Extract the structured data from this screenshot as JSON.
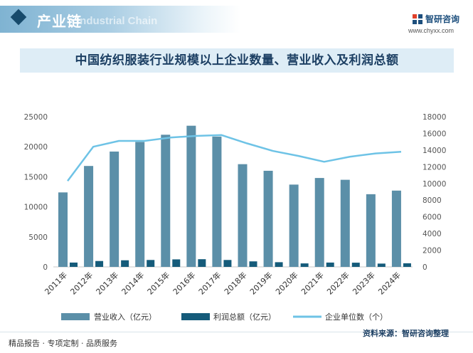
{
  "header": {
    "section_title": "产业链",
    "section_subtitle": "Industrial Chain",
    "brand_name": "智研咨询",
    "brand_url": "www.chyxx.com"
  },
  "chart_title": "中国纺织服装行业规模以上企业数量、营业收入及利润总额",
  "footer": {
    "left_text": "精品报告 · 专项定制 · 品质服务",
    "source_text": "资料来源：智研咨询整理"
  },
  "colors": {
    "revenue": "#5b8fa8",
    "profit": "#155b7a",
    "enterprises": "#6ec3e6",
    "axis_text": "#555555",
    "grid": "#e2e2e2"
  },
  "chart_data": {
    "type": "bar",
    "title": "中国纺织服装行业规模以上企业数量、营业收入及利润总额",
    "categories": [
      "2011年",
      "2012年",
      "2013年",
      "2014年",
      "2015年",
      "2016年",
      "2017年",
      "2018年",
      "2019年",
      "2020年",
      "2021年",
      "2022年",
      "2023年",
      "2024年"
    ],
    "series": [
      {
        "name": "营业收入（亿元）",
        "type": "bar",
        "axis": "left",
        "values": [
          12400,
          16800,
          19200,
          20800,
          22000,
          23500,
          21700,
          17100,
          16000,
          13700,
          14800,
          14500,
          12100,
          12700
        ]
      },
      {
        "name": "利润总额（亿元）",
        "type": "bar",
        "axis": "left",
        "values": [
          720,
          980,
          1100,
          1150,
          1250,
          1280,
          1150,
          920,
          780,
          580,
          720,
          700,
          550,
          600
        ]
      },
      {
        "name": "企业单位数（个）",
        "type": "line",
        "axis": "right",
        "values": [
          10300,
          14400,
          15100,
          15100,
          15500,
          15700,
          15800,
          14800,
          13900,
          13300,
          12600,
          13200,
          13600,
          13800
        ]
      }
    ],
    "left_axis": {
      "ylim": [
        0,
        25000
      ],
      "ticks": [
        0,
        5000,
        10000,
        15000,
        20000,
        25000
      ]
    },
    "right_axis": {
      "ylim": [
        0,
        18000
      ],
      "ticks": [
        0,
        2000,
        4000,
        6000,
        8000,
        10000,
        12000,
        14000,
        16000,
        18000
      ]
    },
    "grid": false,
    "legend_position": "bottom"
  }
}
